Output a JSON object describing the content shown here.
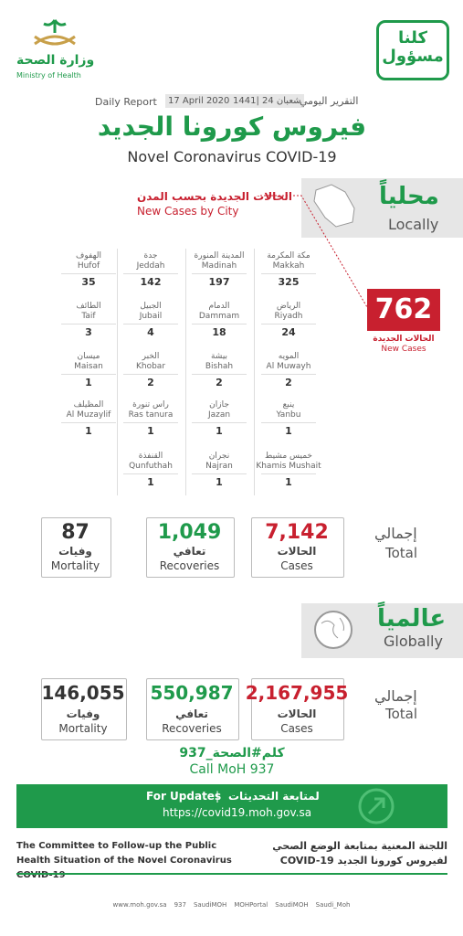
{
  "header": {
    "ministry_ar": "وزارة الصحة",
    "ministry_en": "Ministry of Health",
    "slogan": "كلنا مسؤول"
  },
  "report": {
    "label_en": "Daily Report",
    "date": "17 April 2020",
    "hijri": "1441| 24 شعبان",
    "label_ar": "التقرير اليومي"
  },
  "title_ar": "فيروس كورونا الجديد",
  "title_en": "Novel Coronavirus COVID-19",
  "local": {
    "title_ar": "محلياً",
    "title_en": "Locally",
    "cities_title_ar": "الحالات الجديدة بحسب المدن",
    "cities_title_en": "New Cases by City",
    "new_cases": "762",
    "new_cases_ar": "الحالات الجديدة",
    "new_cases_en": "New Cases",
    "cities": [
      {
        "ar": "مكة المكرمة",
        "en": "Makkah",
        "value": "325"
      },
      {
        "ar": "المدينة المنورة",
        "en": "Madinah",
        "value": "197"
      },
      {
        "ar": "جدة",
        "en": "Jeddah",
        "value": "142"
      },
      {
        "ar": "الهفوف",
        "en": "Hufof",
        "value": "35"
      },
      {
        "ar": "الرياض",
        "en": "Riyadh",
        "value": "24"
      },
      {
        "ar": "الدمام",
        "en": "Dammam",
        "value": "18"
      },
      {
        "ar": "الجبيل",
        "en": "Jubail",
        "value": "4"
      },
      {
        "ar": "الطائف",
        "en": "Taif",
        "value": "3"
      },
      {
        "ar": "المويه",
        "en": "Al Muwayh",
        "value": "2"
      },
      {
        "ar": "بيشة",
        "en": "Bishah",
        "value": "2"
      },
      {
        "ar": "الخبر",
        "en": "Khobar",
        "value": "2"
      },
      {
        "ar": "ميسان",
        "en": "Maisan",
        "value": "1"
      },
      {
        "ar": "ينبع",
        "en": "Yanbu",
        "value": "1"
      },
      {
        "ar": "جازان",
        "en": "Jazan",
        "value": "1"
      },
      {
        "ar": "راس تنورة",
        "en": "Ras tanura",
        "value": "1"
      },
      {
        "ar": "المظيلف",
        "en": "Al Muzaylif",
        "value": "1"
      },
      {
        "ar": "خميس مشيط",
        "en": "Khamis Mushait",
        "value": "1"
      },
      {
        "ar": "نجران",
        "en": "Najran",
        "value": "1"
      },
      {
        "ar": "القنفذة",
        "en": "Qunfuthah",
        "value": "1"
      }
    ],
    "total_ar": "إجمالي",
    "total_en": "Total",
    "totals": [
      {
        "value": "7,142",
        "ar": "الحالات",
        "en": "Cases"
      },
      {
        "value": "1,049",
        "ar": "تعافي",
        "en": "Recoveries"
      },
      {
        "value": "87",
        "ar": "وفيات",
        "en": "Mortality"
      }
    ]
  },
  "global": {
    "title_ar": "عالمياً",
    "title_en": "Globally",
    "total_ar": "إجمالي",
    "total_en": "Total",
    "totals": [
      {
        "value": "2,167,955",
        "ar": "الحالات",
        "en": "Cases"
      },
      {
        "value": "550,987",
        "ar": "تعافي",
        "en": "Recoveries"
      },
      {
        "value": "146,055",
        "ar": "وفيات",
        "en": "Mortality"
      }
    ]
  },
  "contact": {
    "hashtag": "كلم#الصحة_937",
    "call": "Call MoH 937"
  },
  "updates": {
    "label_en": "For Updates",
    "separator": "|",
    "label_ar": "لمتابعة التحديثات",
    "url": "https://covid19.moh.gov.sa"
  },
  "committee": {
    "en": "The Committee to Follow-up the Public Health Situation of the Novel Coronavirus COVID-19",
    "ar": "اللجنة المعنية بمتابعة الوضع الصحي لفيروس كورونا الجديد COVID-19"
  },
  "footer": [
    "www.moh.gov.sa",
    "937",
    "SaudiMOH",
    "MOHPortal",
    "SaudiMOH",
    "Saudi_Moh"
  ]
}
